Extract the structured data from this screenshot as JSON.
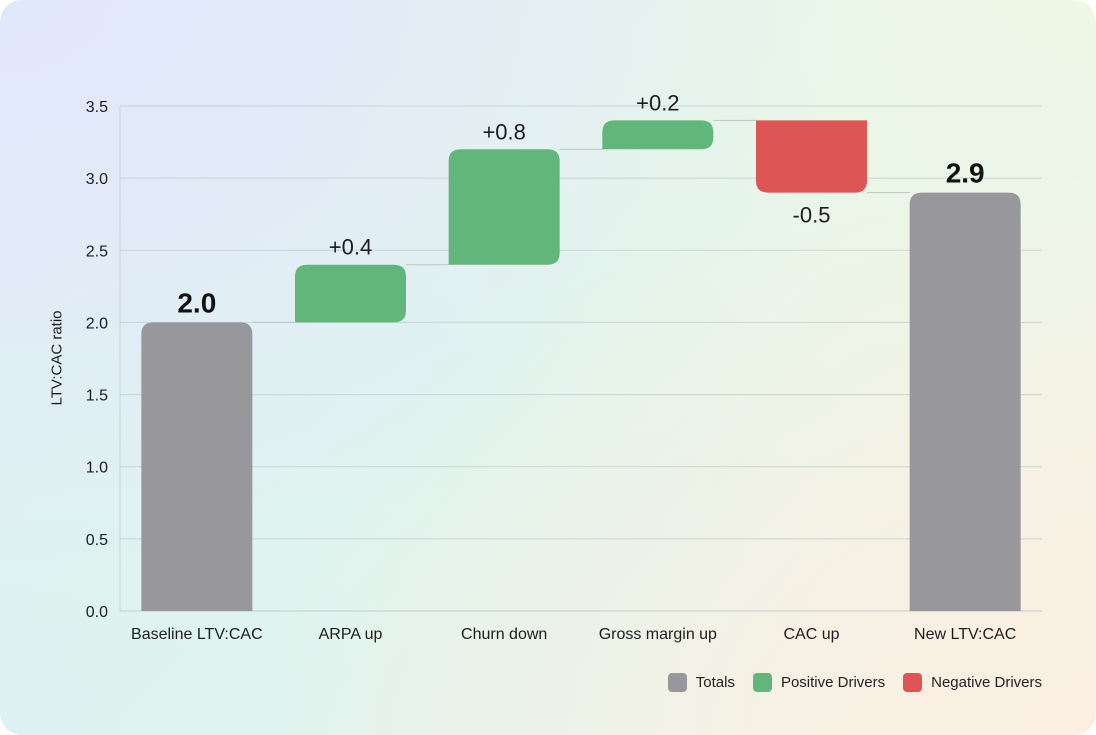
{
  "chart_data": {
    "type": "bar",
    "subtype": "waterfall",
    "title": "",
    "xlabel": "",
    "ylabel": "LTV:CAC ratio",
    "ylim": [
      0,
      3.5
    ],
    "yticks": [
      "0.0",
      "0.5",
      "1.0",
      "1.5",
      "2.0",
      "2.5",
      "3.0",
      "3.5"
    ],
    "grid": true,
    "legend_position": "bottom-right",
    "categories": [
      "Baseline LTV:CAC",
      "ARPA up",
      "Churn down",
      "Gross margin up",
      "CAC up",
      "New LTV:CAC"
    ],
    "bars": [
      {
        "category": "Baseline LTV:CAC",
        "kind": "total",
        "start": 0,
        "end": 2.0,
        "value": 2.0,
        "label": "2.0"
      },
      {
        "category": "ARPA up",
        "kind": "positive",
        "start": 2.0,
        "end": 2.4,
        "value": 0.4,
        "label": "+0.4"
      },
      {
        "category": "Churn down",
        "kind": "positive",
        "start": 2.4,
        "end": 3.2,
        "value": 0.8,
        "label": "+0.8"
      },
      {
        "category": "Gross margin up",
        "kind": "positive",
        "start": 3.2,
        "end": 3.4,
        "value": 0.2,
        "label": "+0.2"
      },
      {
        "category": "CAC up",
        "kind": "negative",
        "start": 3.4,
        "end": 2.9,
        "value": -0.5,
        "label": "-0.5"
      },
      {
        "category": "New LTV:CAC",
        "kind": "total",
        "start": 0,
        "end": 2.9,
        "value": 2.9,
        "label": "2.9"
      }
    ],
    "legend": [
      {
        "name": "Totals",
        "color": "#98989c"
      },
      {
        "name": "Positive Drivers",
        "color": "#62b57b"
      },
      {
        "name": "Negative Drivers",
        "color": "#dd5555"
      }
    ],
    "colors": {
      "total": "#98989c",
      "positive": "#62b57b",
      "negative": "#dd5555",
      "grid": "#c9d3d6",
      "text": "#1d1d1d"
    }
  }
}
